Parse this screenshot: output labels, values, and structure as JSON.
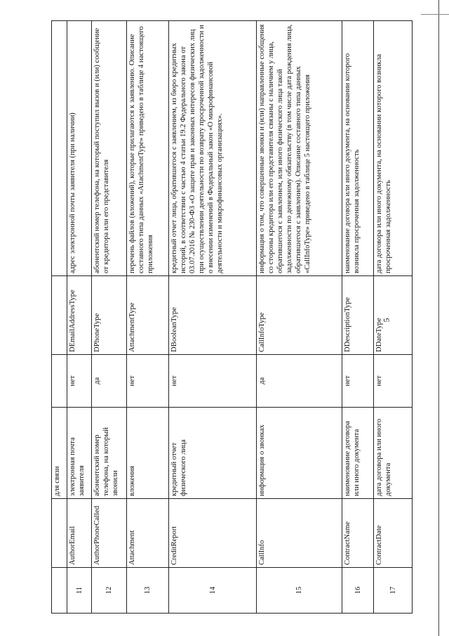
{
  "page_number": "5",
  "continuation_row": {
    "name": "для связи"
  },
  "rows": [
    {
      "no": "11",
      "field": "AuthorEmail",
      "name": "электронная почта заявителя",
      "required": "нет",
      "type": "DEmailAddressType",
      "description": "адрес электронной почты заявителя (при наличии)"
    },
    {
      "no": "12",
      "field": "AuthorPhoneCalled",
      "name": "абонентский номер телефона, на который звонили",
      "required": "да",
      "type": "DPhoneType",
      "description": "абонентский номер телефона, на который поступил вызов и (или) сообщение от кредитора или его представителя"
    },
    {
      "no": "13",
      "field": "Attachment",
      "name": "вложения",
      "required": "нет",
      "type": "AttachmentType",
      "description": "перечень файлов (вложений), которые прилагаются к заявлению. Описание составного типа данных «AttachmentType» приведено в таблице 4 настоящего приложения"
    },
    {
      "no": "14",
      "field": "CreditReport",
      "name": "кредитный отчет физического лица",
      "required": "нет",
      "type": "DBooleanType",
      "description": "кредитный отчет лица, обратившегося с заявлением, из бюро кредитных историй, в соответствии с частью 4 статьи 19.2 Федерального закона от 03.07.2016 № 230-ФЗ «О защите прав и законных интересов физических лиц при осуществлении деятельности по возврату просроченной задолженности и о внесении изменений в Федеральный закон «О микрофинансовой деятельности и микрофинансовых организациях»."
    },
    {
      "no": "15",
      "field": "CallInfo",
      "name": "информация о звонках",
      "required": "да",
      "type": "CallInfoType",
      "description": "информация о том, что совершенные звонки и (или) направленные сообщения со стороны кредитора или его представителя связаны с наличием у лица, обратившегося с заявлением, или иного физического лица такой задолженности по денежному обязательству (в том числе дата рождения лица, обратившегося с заявлением). Описание составного типа данных «CallInfoType» приведено в таблице 5 настоящего приложения"
    },
    {
      "no": "16",
      "field": "ContractName",
      "name": "наименование договора или иного документа",
      "required": "нет",
      "type": "DDescriptionType",
      "description": "наименование договора или иного документа, на основании которого возникла просроченная задолженность"
    },
    {
      "no": "17",
      "field": "ContractDate",
      "name": "дата договора или иного документа",
      "required": "нет",
      "type": "DDateType",
      "description": "дата договора или иного документа, на основании которого возникла просроченная задолженность"
    }
  ]
}
